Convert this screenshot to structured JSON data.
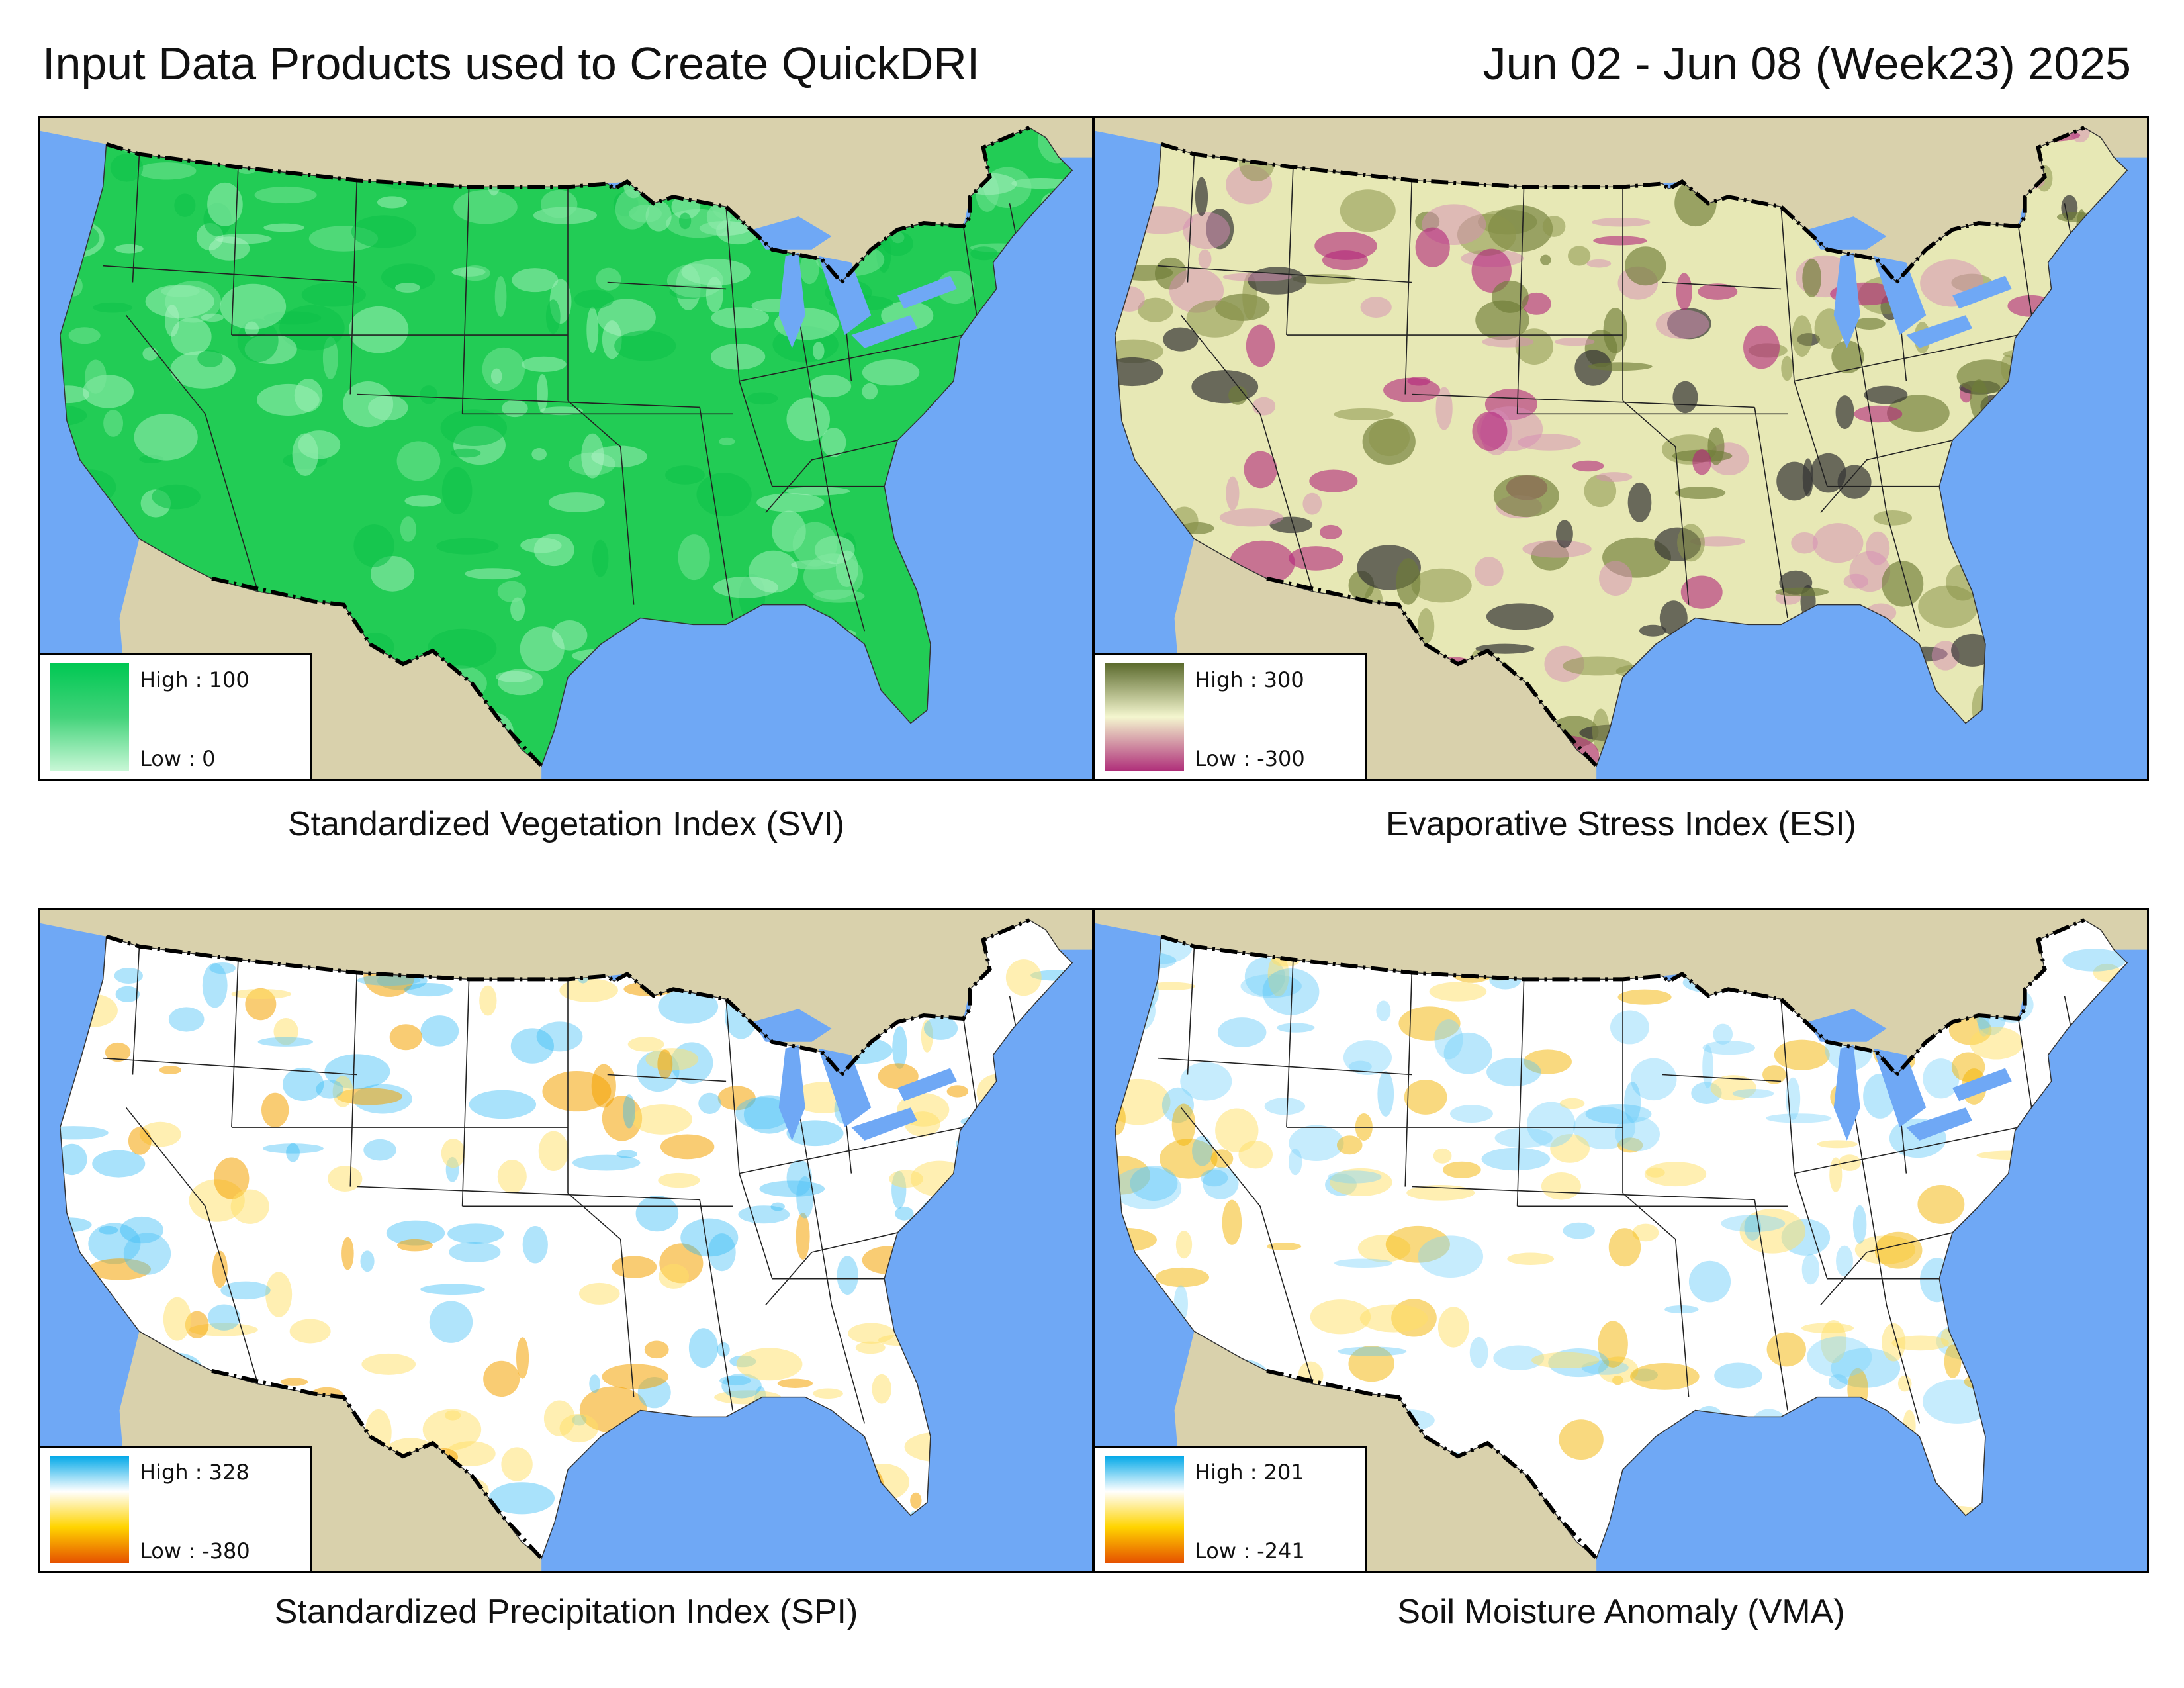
{
  "header": {
    "title": "Input Data Products used to Create QuickDRI",
    "date_range": "Jun 02 - Jun 08 (Week23) 2025"
  },
  "panels": [
    {
      "id": "svi",
      "caption": "Standardized Vegetation Index (SVI)",
      "legend": {
        "high_label": "High : 100",
        "low_label": "Low : 0",
        "ramp": [
          "#00c853",
          "#43d37a",
          "#c8f7d6"
        ]
      },
      "fill": "#22cc55",
      "patches": [
        {
          "c": "#9ff0b8",
          "o": 0.55
        },
        {
          "c": "#0fc24a",
          "o": 0.6
        },
        {
          "c": "#7be69c",
          "o": 0.5
        },
        {
          "c": "#b8f5cb",
          "o": 0.45
        }
      ]
    },
    {
      "id": "esi",
      "caption": "Evaporative Stress Index (ESI)",
      "legend": {
        "high_label": "High : 300",
        "low_label": "Low : -300",
        "ramp": [
          "#5c6b2e",
          "#f4f6cf",
          "#b0307a"
        ]
      },
      "fill": "#e7e8b5",
      "patches": [
        {
          "c": "#6f7d38",
          "o": 0.65
        },
        {
          "c": "#b3247c",
          "o": 0.6
        },
        {
          "c": "#8a944a",
          "o": 0.55
        },
        {
          "c": "#333333",
          "o": 0.7
        },
        {
          "c": "#d58bb6",
          "o": 0.5
        }
      ]
    },
    {
      "id": "spi",
      "caption": "Standardized Precipitation Index (SPI)",
      "legend": {
        "high_label": "High : 328",
        "low_label": "Low : -380",
        "ramp": [
          "#00a8e8",
          "#ffffff",
          "#ffd400",
          "#e65100"
        ]
      },
      "fill": "#ffffff",
      "patches": [
        {
          "c": "#4fc3f7",
          "o": 0.45
        },
        {
          "c": "#ffe066",
          "o": 0.5
        },
        {
          "c": "#29b6f6",
          "o": 0.4
        },
        {
          "c": "#f4a300",
          "o": 0.55
        }
      ]
    },
    {
      "id": "vma",
      "caption": "Soil Moisture Anomaly (VMA)",
      "legend": {
        "high_label": "High : 201",
        "low_label": "Low : -241",
        "ramp": [
          "#00a8e8",
          "#ffffff",
          "#ffd400",
          "#e65100"
        ]
      },
      "fill": "#ffffff",
      "patches": [
        {
          "c": "#ffe066",
          "o": 0.5
        },
        {
          "c": "#4fc3f7",
          "o": 0.4
        },
        {
          "c": "#f4b400",
          "o": 0.5
        },
        {
          "c": "#81d4fa",
          "o": 0.45
        }
      ]
    }
  ]
}
